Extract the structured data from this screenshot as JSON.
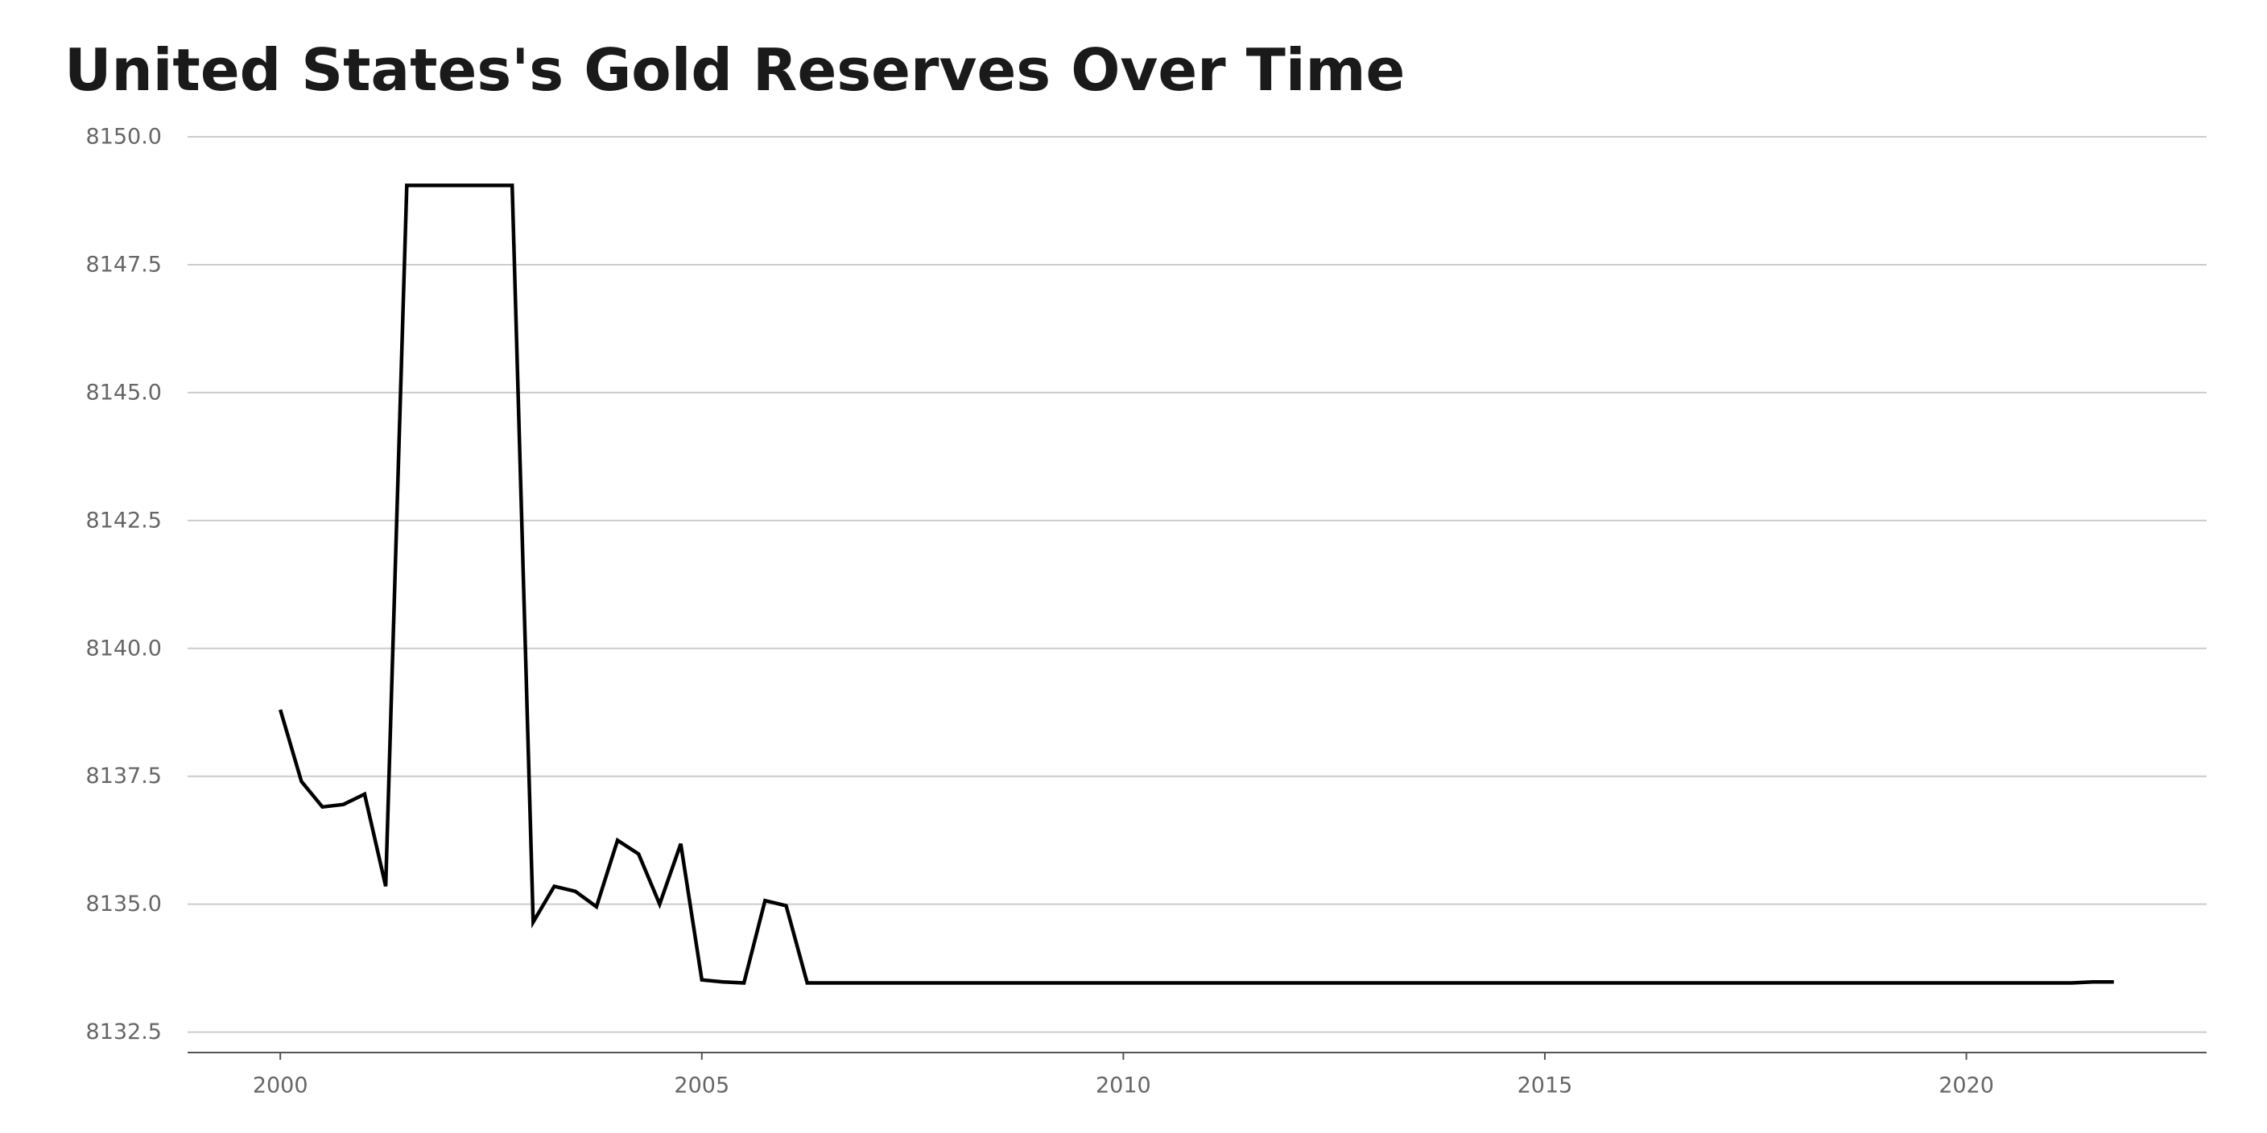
{
  "chart_data": {
    "type": "line",
    "title": "United States's Gold Reserves Over Time",
    "xlabel": "",
    "ylabel": "",
    "xlim": [
      1998.9,
      2022.85
    ],
    "ylim": [
      8132.1,
      8150.0
    ],
    "x_ticks": [
      2000,
      2005,
      2010,
      2015,
      2020
    ],
    "x_tick_labels": [
      "2000",
      "2005",
      "2010",
      "2015",
      "2020"
    ],
    "y_ticks": [
      8132.5,
      8135.0,
      8137.5,
      8140.0,
      8142.5,
      8145.0,
      8147.5,
      8150.0
    ],
    "y_tick_labels": [
      "8132.5",
      "8135.0",
      "8137.5",
      "8140.0",
      "8142.5",
      "8145.0",
      "8147.5",
      "8150.0"
    ],
    "grid": "horizontal",
    "colors": {
      "line": "#000000",
      "grid": "#cccccc",
      "axis": "#555555",
      "tick_text": "#666666",
      "title": "#1a1a1a"
    },
    "series": [
      {
        "x": [
          2000.0,
          2000.25,
          2000.5,
          2000.75,
          2001.0,
          2001.25,
          2001.5,
          2001.75,
          2002.0,
          2002.25,
          2002.5,
          2002.75,
          2003.0,
          2003.25,
          2003.5,
          2003.75,
          2004.0,
          2004.25,
          2004.5,
          2004.75,
          2005.0,
          2005.25,
          2005.5,
          2005.75,
          2006.0,
          2006.25,
          2006.5,
          2007.0,
          2008.0,
          2009.0,
          2010.0,
          2011.0,
          2012.0,
          2013.0,
          2014.0,
          2015.0,
          2016.0,
          2017.0,
          2018.0,
          2019.0,
          2020.0,
          2021.0,
          2021.25,
          2021.5,
          2021.75
        ],
        "values": [
          8138.8,
          8137.4,
          8136.9,
          8136.95,
          8137.15,
          8135.35,
          8149.05,
          8149.05,
          8149.05,
          8149.05,
          8149.05,
          8149.05,
          8134.65,
          8135.35,
          8135.25,
          8134.95,
          8136.25,
          8135.98,
          8135.0,
          8136.18,
          8133.52,
          8133.48,
          8133.46,
          8135.07,
          8134.97,
          8133.46,
          8133.46,
          8133.46,
          8133.46,
          8133.46,
          8133.46,
          8133.46,
          8133.46,
          8133.46,
          8133.46,
          8133.46,
          8133.46,
          8133.46,
          8133.46,
          8133.46,
          8133.46,
          8133.46,
          8133.46,
          8133.48,
          8133.48
        ]
      }
    ]
  }
}
